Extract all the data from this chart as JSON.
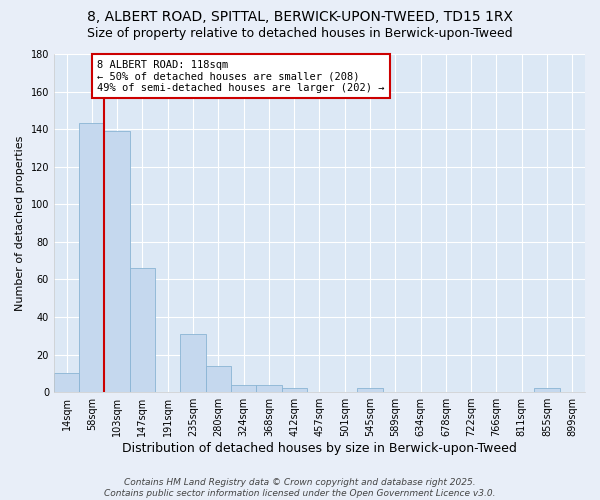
{
  "title_line1": "8, ALBERT ROAD, SPITTAL, BERWICK-UPON-TWEED, TD15 1RX",
  "title_line2": "Size of property relative to detached houses in Berwick-upon-Tweed",
  "xlabel": "Distribution of detached houses by size in Berwick-upon-Tweed",
  "ylabel": "Number of detached properties",
  "categories": [
    "14sqm",
    "58sqm",
    "103sqm",
    "147sqm",
    "191sqm",
    "235sqm",
    "280sqm",
    "324sqm",
    "368sqm",
    "412sqm",
    "457sqm",
    "501sqm",
    "545sqm",
    "589sqm",
    "634sqm",
    "678sqm",
    "722sqm",
    "766sqm",
    "811sqm",
    "855sqm",
    "899sqm"
  ],
  "values": [
    10,
    143,
    139,
    66,
    0,
    31,
    14,
    4,
    4,
    2,
    0,
    0,
    2,
    0,
    0,
    0,
    0,
    0,
    0,
    2,
    0
  ],
  "bar_color": "#c5d8ee",
  "bar_edgecolor": "#8ab4d4",
  "annotation_text_line1": "8 ALBERT ROAD: 118sqm",
  "annotation_text_line2": "← 50% of detached houses are smaller (208)",
  "annotation_text_line3": "49% of semi-detached houses are larger (202) →",
  "annotation_box_color": "#ffffff",
  "annotation_border_color": "#cc0000",
  "red_line_index": 2,
  "ylim": [
    0,
    180
  ],
  "yticks": [
    0,
    20,
    40,
    60,
    80,
    100,
    120,
    140,
    160,
    180
  ],
  "background_color": "#e8eef8",
  "plot_bg_color": "#dce8f5",
  "footer_line1": "Contains HM Land Registry data © Crown copyright and database right 2025.",
  "footer_line2": "Contains public sector information licensed under the Open Government Licence v3.0.",
  "title_fontsize": 10,
  "subtitle_fontsize": 9,
  "xlabel_fontsize": 9,
  "ylabel_fontsize": 8,
  "tick_fontsize": 7,
  "footer_fontsize": 6.5,
  "ann_fontsize": 7.5
}
